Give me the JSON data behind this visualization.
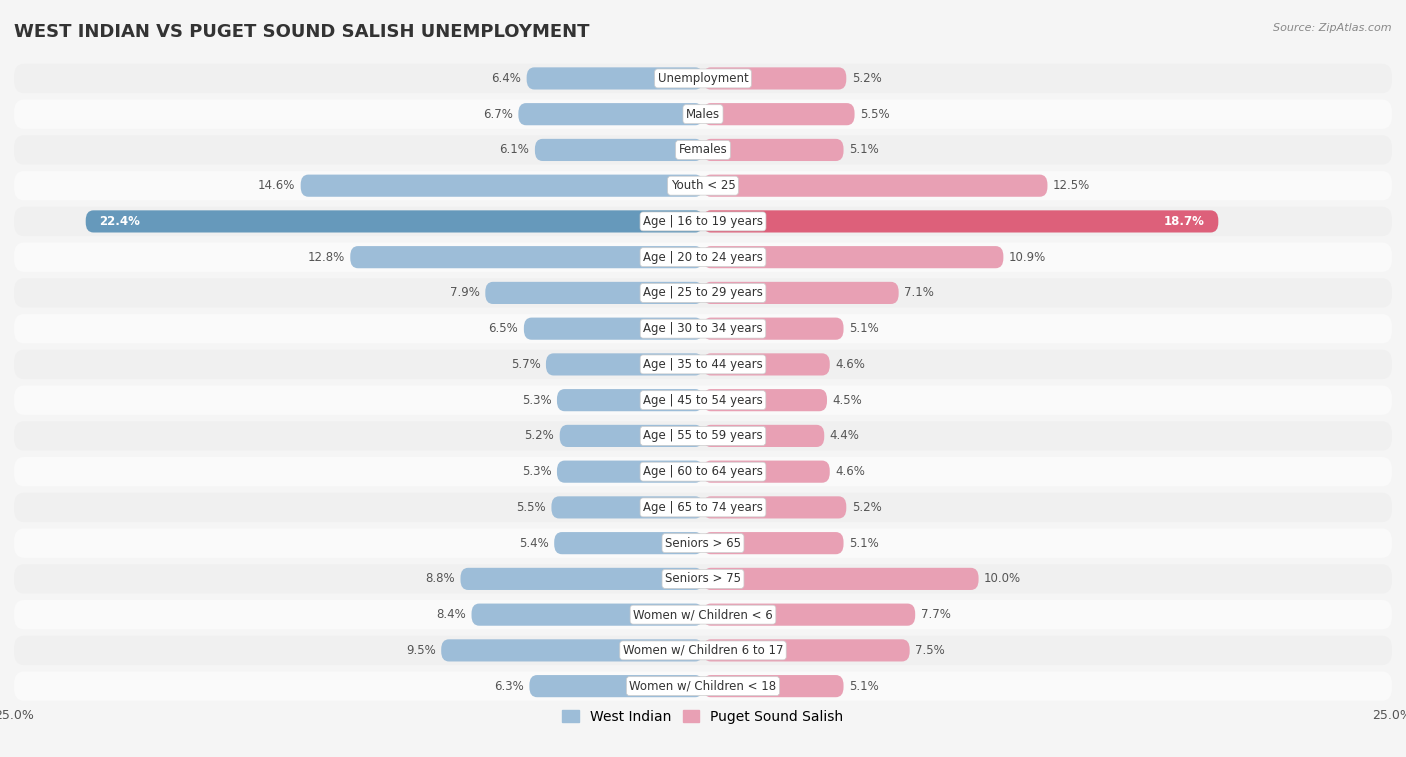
{
  "title": "WEST INDIAN VS PUGET SOUND SALISH UNEMPLOYMENT",
  "source": "Source: ZipAtlas.com",
  "categories": [
    "Unemployment",
    "Males",
    "Females",
    "Youth < 25",
    "Age | 16 to 19 years",
    "Age | 20 to 24 years",
    "Age | 25 to 29 years",
    "Age | 30 to 34 years",
    "Age | 35 to 44 years",
    "Age | 45 to 54 years",
    "Age | 55 to 59 years",
    "Age | 60 to 64 years",
    "Age | 65 to 74 years",
    "Seniors > 65",
    "Seniors > 75",
    "Women w/ Children < 6",
    "Women w/ Children 6 to 17",
    "Women w/ Children < 18"
  ],
  "west_indian": [
    6.4,
    6.7,
    6.1,
    14.6,
    22.4,
    12.8,
    7.9,
    6.5,
    5.7,
    5.3,
    5.2,
    5.3,
    5.5,
    5.4,
    8.8,
    8.4,
    9.5,
    6.3
  ],
  "puget_sound": [
    5.2,
    5.5,
    5.1,
    12.5,
    18.7,
    10.9,
    7.1,
    5.1,
    4.6,
    4.5,
    4.4,
    4.6,
    5.2,
    5.1,
    10.0,
    7.7,
    7.5,
    5.1
  ],
  "west_indian_color": "#9dbdd8",
  "puget_sound_color": "#e8a0b4",
  "west_indian_highlight_color": "#6699bb",
  "puget_sound_highlight_color": "#dd607a",
  "row_color_odd": "#f0f0f0",
  "row_color_even": "#fafafa",
  "bg_color": "#f5f5f5",
  "title_fontsize": 13,
  "label_fontsize": 8.5,
  "value_fontsize": 8.5,
  "tick_fontsize": 9,
  "legend_fontsize": 10,
  "xlim": 25.0
}
